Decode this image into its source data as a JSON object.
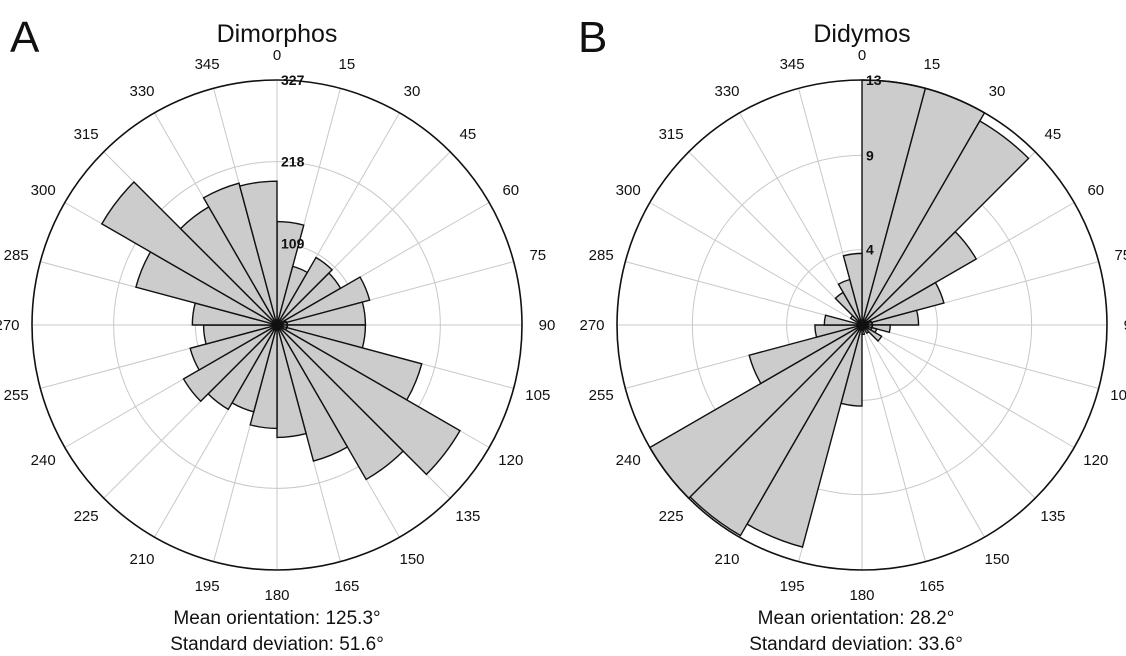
{
  "chart_data": [
    {
      "type": "polar-histogram",
      "panel_label": "A",
      "title": "Dimorphos",
      "angle_ticks": [
        "0",
        "15",
        "30",
        "45",
        "60",
        "75",
        "90",
        "105",
        "120",
        "135",
        "150",
        "165",
        "180",
        "195",
        "210",
        "225",
        "240",
        "255",
        "270",
        "285",
        "300",
        "315",
        "330",
        "345"
      ],
      "radial_ticks": [
        "0",
        "109",
        "218",
        "327"
      ],
      "rmax": 327,
      "grid": true,
      "bin_width_deg": 15,
      "bin_start_deg": [
        0,
        15,
        30,
        45,
        60,
        75,
        90,
        105,
        120,
        135,
        150,
        165,
        180,
        195,
        210,
        225,
        240,
        255,
        270,
        285,
        300,
        315,
        330,
        345
      ],
      "values": [
        138,
        81,
        104,
        98,
        128,
        118,
        118,
        200,
        282,
        238,
        188,
        150,
        138,
        120,
        130,
        144,
        120,
        98,
        113,
        195,
        270,
        182,
        196,
        192
      ],
      "fill_color": "#cccccc",
      "edge_color": "#111111",
      "stats": [
        "Mean orientation: 125.3°",
        "Standard deviation: 51.6°"
      ]
    },
    {
      "type": "polar-histogram",
      "panel_label": "B",
      "title": "Didymos",
      "angle_ticks": [
        "0",
        "15",
        "30",
        "45",
        "60",
        "75",
        "90",
        "105",
        "120",
        "135",
        "150",
        "165",
        "180",
        "195",
        "210",
        "225",
        "240",
        "255",
        "270",
        "285",
        "300",
        "315",
        "330",
        "345"
      ],
      "radial_ticks": [
        "0",
        "4",
        "9",
        "13"
      ],
      "rmax": 13,
      "grid": true,
      "bin_width_deg": 15,
      "bin_start_deg": [
        0,
        15,
        30,
        45,
        60,
        75,
        90,
        105,
        120,
        135,
        150,
        165,
        180,
        195,
        210,
        225,
        240,
        255,
        270,
        285,
        300,
        315,
        330,
        345
      ],
      "values": [
        13.3,
        13.3,
        12.5,
        7,
        4.5,
        3,
        1.5,
        0.8,
        1.2,
        0.5,
        0,
        0.5,
        4.3,
        12.2,
        12.9,
        14.5,
        6.2,
        2.5,
        2,
        0,
        0.7,
        2,
        2.5,
        3.8
      ],
      "fill_color": "#cccccc",
      "edge_color": "#111111",
      "stats": [
        "Mean orientation: 28.2°",
        "Standard deviation: 33.6°"
      ]
    }
  ]
}
